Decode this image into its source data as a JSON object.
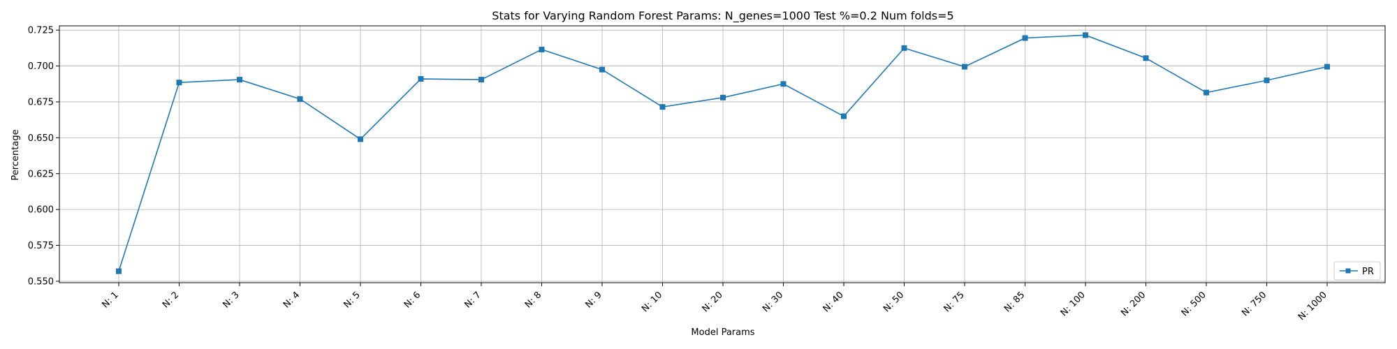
{
  "chart_data": {
    "type": "line",
    "title": "Stats for Varying Random Forest Params: N_genes=1000 Test %=0.2 Num folds=5",
    "xlabel": "Model Params",
    "ylabel": "Percentage",
    "categories": [
      "N: 1",
      "N: 2",
      "N: 3",
      "N: 4",
      "N: 5",
      "N: 6",
      "N: 7",
      "N: 8",
      "N: 9",
      "N: 10",
      "N: 20",
      "N: 30",
      "N: 40",
      "N: 50",
      "N: 75",
      "N: 85",
      "N: 100",
      "N: 200",
      "N: 500",
      "N: 750",
      "N: 1000"
    ],
    "series": [
      {
        "name": "PR",
        "color": "#1f77b4",
        "marker": "square",
        "values": [
          0.557,
          0.6885,
          0.6905,
          0.677,
          0.649,
          0.691,
          0.6905,
          0.7115,
          0.6975,
          0.6715,
          0.678,
          0.6875,
          0.665,
          0.7125,
          0.6995,
          0.7195,
          0.7215,
          0.7055,
          0.6815,
          0.69,
          0.6995
        ]
      }
    ],
    "ylim": [
      0.549,
      0.728
    ],
    "yticks": [
      "0.550",
      "0.575",
      "0.600",
      "0.625",
      "0.650",
      "0.675",
      "0.700",
      "0.725"
    ],
    "grid": true,
    "legend_position": "lower-right"
  }
}
